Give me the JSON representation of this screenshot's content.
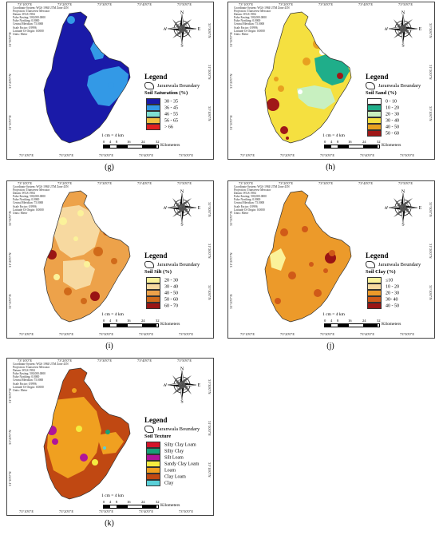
{
  "meta_lines": [
    "Coordinate System: WGS 1984 UTM Zone 43N",
    "Projection: Transverse Mercator",
    "Datum: WGS 1984",
    "False Easting: 500,000.0000",
    "False Northing: 0.0000",
    "Central Meridian: 75.0000",
    "Scale Factor: 0.9996",
    "Latitude Of Origin: 0.0000",
    "Units: Meter"
  ],
  "lon_ticks": [
    "73°10'0\"E",
    "73°20'0\"E",
    "73°30'0\"E",
    "73°40'0\"E",
    "73°50'0\"E",
    "74°0'0\"E"
  ],
  "lat_ticks": [
    "31°30'0\"N",
    "31°20'0\"N",
    "31°10'0\"N"
  ],
  "compass": {
    "n": "N",
    "s": "S",
    "e": "E",
    "w": "W"
  },
  "scale": {
    "ratio": "1 cm = 4 km",
    "labels": [
      "0",
      "4",
      "8",
      "16",
      "24",
      "32"
    ],
    "unit": "Kilometers"
  },
  "legend_title": "Legend",
  "boundary_label": "Jaranwala Boundary",
  "panels": [
    {
      "id": "g",
      "label": "(g)",
      "title": "Soil Saturation (%)",
      "classes": [
        {
          "label": "30 - 35",
          "color": "#1a1aa8"
        },
        {
          "label": "36 - 45",
          "color": "#3399e6"
        },
        {
          "label": "46 - 55",
          "color": "#7ee0d2"
        },
        {
          "label": "56 - 65",
          "color": "#f0c040"
        },
        {
          "label": "> 66",
          "color": "#e02020"
        }
      ]
    },
    {
      "id": "h",
      "label": "(h)",
      "title": "Soil Sand (%)",
      "classes": [
        {
          "label": "0 - 10",
          "color": "#ffffff"
        },
        {
          "label": "10 - 20",
          "color": "#1fae8a"
        },
        {
          "label": "20 - 30",
          "color": "#c8f0c0"
        },
        {
          "label": "30 - 40",
          "color": "#f5e040"
        },
        {
          "label": "40 - 50",
          "color": "#e8a020"
        },
        {
          "label": "50 - 60",
          "color": "#a01818"
        }
      ]
    },
    {
      "id": "i",
      "label": "(i)",
      "title": "Soil Silt (%)",
      "classes": [
        {
          "label": "20 - 30",
          "color": "#fbf29a"
        },
        {
          "label": "30 - 40",
          "color": "#f7d9a0"
        },
        {
          "label": "40 - 50",
          "color": "#eda24a"
        },
        {
          "label": "50 - 60",
          "color": "#d06a1a"
        },
        {
          "label": "60 - 70",
          "color": "#9a1414"
        }
      ]
    },
    {
      "id": "j",
      "label": "(j)",
      "title": "Soil Clay (%)",
      "classes": [
        {
          "label": "≤10",
          "color": "#fbf29a"
        },
        {
          "label": "10 - 20",
          "color": "#f7d9a0"
        },
        {
          "label": "20 - 30",
          "color": "#ec9a2a"
        },
        {
          "label": "30- 40",
          "color": "#d05a18"
        },
        {
          "label": "40 - 50",
          "color": "#9a1414"
        }
      ]
    },
    {
      "id": "k",
      "label": "(k)",
      "title": "Soil Texture",
      "classes": [
        {
          "label": "Silty Clay Loam",
          "color": "#d4142a"
        },
        {
          "label": "Silty Clay",
          "color": "#18a078"
        },
        {
          "label": "Silt Loam",
          "color": "#b0149a"
        },
        {
          "label": "Sandy Clay Loam",
          "color": "#f4ec40"
        },
        {
          "label": "Loam",
          "color": "#f0a020"
        },
        {
          "label": "Clay Loam",
          "color": "#c04812"
        },
        {
          "label": "Clay",
          "color": "#5ad0d8"
        }
      ]
    }
  ]
}
